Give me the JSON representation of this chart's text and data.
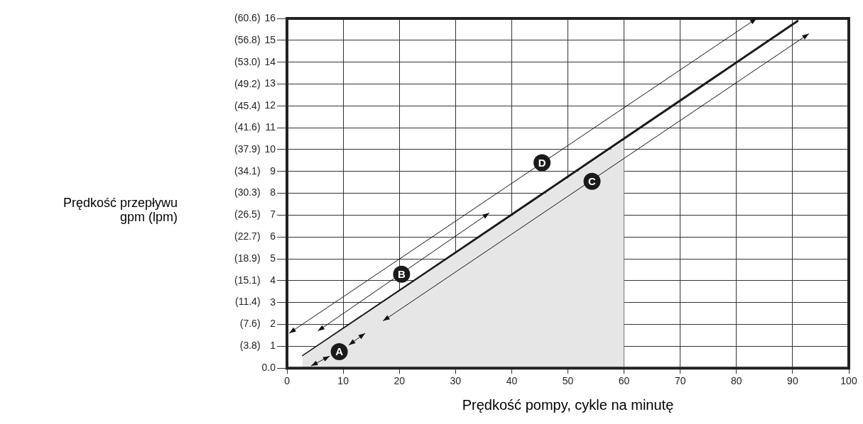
{
  "chart_data": {
    "type": "line",
    "xlabel": "Prędkość pompy, cykle na minutę",
    "y2label": "Prędkość przepływu\ngpm (lpm)",
    "series": [
      {
        "type": "area",
        "color": "#e6e6e6",
        "x": [
          2.75,
          60
        ],
        "values": [
          0.54,
          10.4
        ]
      },
      {
        "color": "#1a1a1a",
        "x": [
          2.75,
          91
        ],
        "values": [
          0.54,
          15.9
        ]
      }
    ],
    "xlim": [
      0,
      100
    ],
    "xticks": [
      0,
      10,
      20,
      30,
      40,
      50,
      60,
      70,
      80,
      90,
      100
    ],
    "ylim": [
      0,
      16
    ],
    "yticks": [
      {
        "value": 0,
        "label": "0.0"
      },
      1,
      2,
      3,
      4,
      5,
      6,
      7,
      8,
      9,
      10,
      11,
      12,
      13,
      14,
      15,
      16
    ],
    "y2lim": [
      0,
      60.6
    ],
    "y2ticks": [
      {
        "value": 3.8,
        "label": "(3.8)"
      },
      {
        "value": 7.6,
        "label": "(7.6)"
      },
      {
        "value": 11.4,
        "label": "(11.4)"
      },
      {
        "value": 15.1,
        "label": "(15.1)"
      },
      {
        "value": 18.9,
        "label": "(18.9)"
      },
      {
        "value": 22.7,
        "label": "(22.7)"
      },
      {
        "value": 26.5,
        "label": "(26.5)"
      },
      {
        "value": 30.3,
        "label": "(30.3)"
      },
      {
        "value": 34.1,
        "label": "(34.1)"
      },
      {
        "value": 37.9,
        "label": "(37.9)"
      },
      {
        "value": 41.6,
        "label": "(41.6)"
      },
      {
        "value": 45.4,
        "label": "(45.4)"
      },
      {
        "value": 49.2,
        "label": "(49.2)"
      },
      {
        "value": 53.0,
        "label": "(53.0)"
      },
      {
        "value": 56.8,
        "label": "(56.8)"
      },
      {
        "value": 60.6,
        "label": "(60.6)"
      }
    ],
    "annotations": [
      {
        "text": "A",
        "x": 9.3,
        "y": 0.75
      },
      {
        "text": "B",
        "x": 20.4,
        "y": 4.3
      },
      {
        "text": "C",
        "x": 54.3,
        "y": 8.55
      },
      {
        "text": "D",
        "x": 45.4,
        "y": 9.4
      }
    ],
    "grid": true,
    "legend": false,
    "marker": "none",
    "line_style": "solid"
  }
}
